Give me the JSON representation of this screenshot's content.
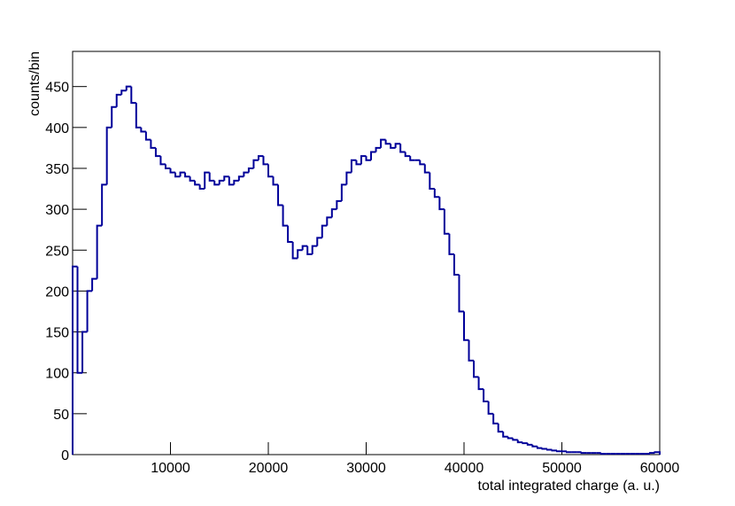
{
  "chart_data": {
    "type": "histogram",
    "xlabel": "total integrated charge (a. u.)",
    "ylabel": "counts/bin",
    "color": "#000099",
    "xlim": [
      0,
      60000
    ],
    "ylim": [
      0,
      493
    ],
    "xticks": [
      10000,
      20000,
      30000,
      40000,
      50000,
      60000
    ],
    "yticks": [
      0,
      50,
      100,
      150,
      200,
      250,
      300,
      350,
      400,
      450
    ],
    "bins": [
      0,
      500,
      1000,
      1500,
      2000,
      2500,
      3000,
      3500,
      4000,
      4500,
      5000,
      5500,
      6000,
      6500,
      7000,
      7500,
      8000,
      8500,
      9000,
      9500,
      10000,
      10500,
      11000,
      11500,
      12000,
      12500,
      13000,
      13500,
      14000,
      14500,
      15000,
      15500,
      16000,
      16500,
      17000,
      17500,
      18000,
      18500,
      19000,
      19500,
      20000,
      20500,
      21000,
      21500,
      22000,
      22500,
      23000,
      23500,
      24000,
      24500,
      25000,
      25500,
      26000,
      26500,
      27000,
      27500,
      28000,
      28500,
      29000,
      29500,
      30000,
      30500,
      31000,
      31500,
      32000,
      32500,
      33000,
      33500,
      34000,
      34500,
      35000,
      35500,
      36000,
      36500,
      37000,
      37500,
      38000,
      38500,
      39000,
      39500,
      40000,
      40500,
      41000,
      41500,
      42000,
      42500,
      43000,
      43500,
      44000,
      44500,
      45000,
      45500,
      46000,
      46500,
      47000,
      47500,
      48000,
      48500,
      49000,
      49500,
      50000,
      50500,
      51000,
      51500,
      52000,
      52500,
      53000,
      53500,
      54000,
      54500,
      55000,
      55500,
      56000,
      56500,
      57000,
      57500,
      58000,
      58500,
      59000,
      59500,
      60000
    ],
    "values": [
      230,
      100,
      150,
      200,
      215,
      280,
      330,
      400,
      425,
      440,
      445,
      450,
      430,
      400,
      395,
      385,
      375,
      365,
      355,
      350,
      345,
      340,
      345,
      340,
      335,
      330,
      325,
      345,
      335,
      330,
      335,
      340,
      330,
      335,
      340,
      345,
      350,
      360,
      365,
      355,
      340,
      330,
      305,
      280,
      260,
      240,
      250,
      255,
      245,
      255,
      265,
      280,
      290,
      300,
      310,
      330,
      345,
      360,
      355,
      365,
      360,
      370,
      375,
      385,
      380,
      375,
      380,
      370,
      365,
      360,
      360,
      355,
      345,
      325,
      315,
      300,
      270,
      245,
      220,
      175,
      140,
      115,
      95,
      80,
      65,
      50,
      38,
      28,
      22,
      20,
      18,
      15,
      14,
      12,
      10,
      8,
      7,
      6,
      5,
      4,
      4,
      3,
      3,
      3,
      2,
      2,
      2,
      2,
      1,
      1,
      1,
      1,
      1,
      1,
      1,
      1,
      1,
      1,
      2,
      3
    ]
  }
}
